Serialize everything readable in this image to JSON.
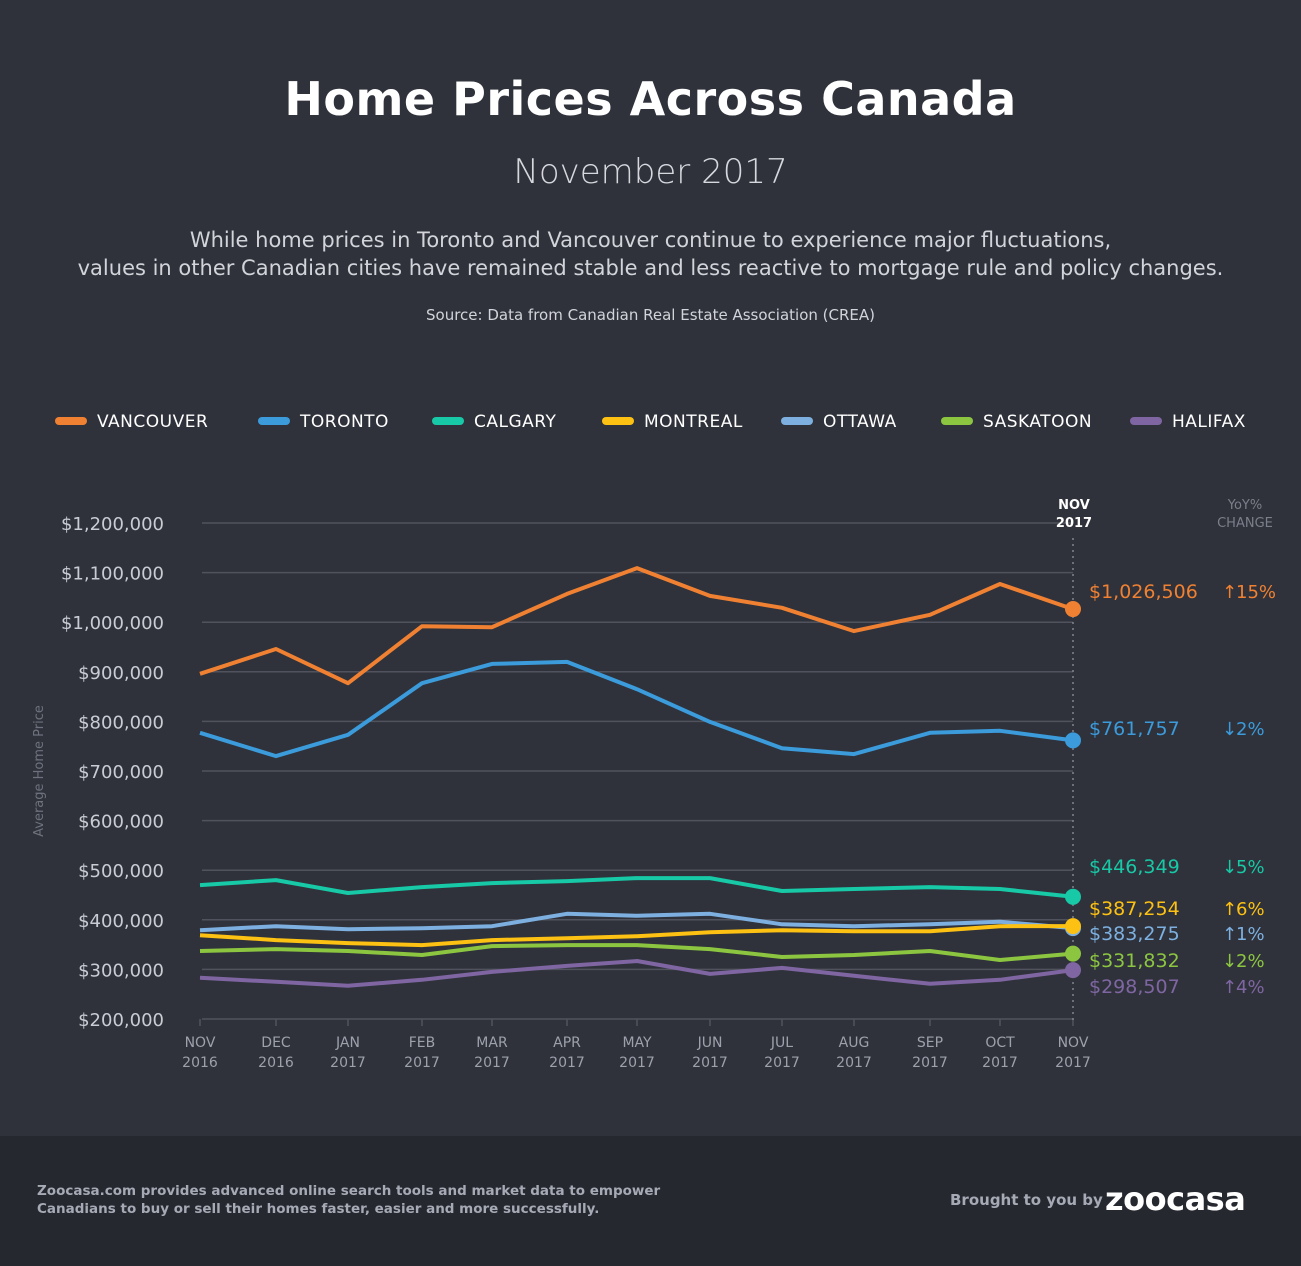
{
  "header": {
    "title": "Home Prices Across Canada",
    "subtitle": "November 2017",
    "description_line1": "While home prices in Toronto and Vancouver continue to experience major fluctuations,",
    "description_line2": "values in other Canadian cities have remained stable and less reactive to mortgage rule and policy changes.",
    "source": "Source: Data from Canadian Real Estate Association (CREA)"
  },
  "footer": {
    "text_line1": "Zoocasa.com provides advanced online search tools and market data to empower",
    "text_line2": "Canadians to buy or sell their homes faster, easier and more successfully.",
    "brought_by": "Brought to you by",
    "logo": "zoocasa"
  },
  "chart_data": {
    "type": "line",
    "ylabel": "Average Home Price",
    "ylim": [
      200000,
      1200000
    ],
    "y_ticks": [
      "$200,000",
      "$300,000",
      "$400,000",
      "$500,000",
      "$600,000",
      "$700,000",
      "$800,000",
      "$900,000",
      "$1,000,000",
      "$1,100,000",
      "$1,200,000"
    ],
    "y_tick_values": [
      200000,
      300000,
      400000,
      500000,
      600000,
      700000,
      800000,
      900000,
      1000000,
      1100000,
      1200000
    ],
    "grid": true,
    "legend_position": "top",
    "x_categories": [
      [
        "NOV",
        "2016"
      ],
      [
        "DEC",
        "2016"
      ],
      [
        "JAN",
        "2017"
      ],
      [
        "FEB",
        "2017"
      ],
      [
        "MAR",
        "2017"
      ],
      [
        "APR",
        "2017"
      ],
      [
        "MAY",
        "2017"
      ],
      [
        "JUN",
        "2017"
      ],
      [
        "JUL",
        "2017"
      ],
      [
        "AUG",
        "2017"
      ],
      [
        "SEP",
        "2017"
      ],
      [
        "OCT",
        "2017"
      ],
      [
        "NOV",
        "2017"
      ]
    ],
    "highlight_header": [
      "NOV",
      "2017"
    ],
    "yoy_header": [
      "YoY%",
      "CHANGE"
    ],
    "series": [
      {
        "name": "VANCOUVER",
        "color": "#f08132",
        "values": [
          896000,
          946000,
          877000,
          992000,
          990000,
          1057000,
          1109000,
          1053000,
          1029000,
          982000,
          1015000,
          1077000,
          1026506
        ],
        "final_label": "$1,026,506",
        "yoy": "15%",
        "yoy_direction": "up"
      },
      {
        "name": "TORONTO",
        "color": "#3b9bdb",
        "values": [
          777000,
          730000,
          773000,
          877000,
          916000,
          920000,
          865000,
          799000,
          746000,
          734000,
          777000,
          781000,
          761757
        ],
        "final_label": "$761,757",
        "yoy": "2%",
        "yoy_direction": "down"
      },
      {
        "name": "CALGARY",
        "color": "#17c9a6",
        "values": [
          470000,
          480000,
          454000,
          466000,
          474000,
          478000,
          484000,
          484000,
          458000,
          462000,
          466000,
          462000,
          446349
        ],
        "final_label": "$446,349",
        "yoy": "5%",
        "yoy_direction": "down"
      },
      {
        "name": "MONTREAL",
        "color": "#fcc112",
        "values": [
          369000,
          359000,
          353000,
          349000,
          359000,
          363000,
          367000,
          375000,
          379000,
          377000,
          377000,
          387000,
          387254
        ],
        "final_label": "$387,254",
        "yoy": "6%",
        "yoy_direction": "up"
      },
      {
        "name": "OTTAWA",
        "color": "#7db0e0",
        "values": [
          379000,
          387000,
          381000,
          383000,
          387000,
          412000,
          408000,
          412000,
          391000,
          387000,
          391000,
          396000,
          383275
        ],
        "final_label": "$383,275",
        "yoy": "1%",
        "yoy_direction": "up"
      },
      {
        "name": "SASKATOON",
        "color": "#8cc640",
        "values": [
          337000,
          341000,
          337000,
          329000,
          347000,
          349000,
          349000,
          341000,
          325000,
          329000,
          337000,
          319000,
          331832
        ],
        "final_label": "$331,832",
        "yoy": "2%",
        "yoy_direction": "down"
      },
      {
        "name": "HALIFAX",
        "color": "#7f66a2",
        "values": [
          283000,
          275000,
          267000,
          279000,
          295000,
          307000,
          317000,
          291000,
          303000,
          287000,
          271000,
          279000,
          298507
        ],
        "final_label": "$298,507",
        "yoy": "4%",
        "yoy_direction": "up"
      }
    ]
  }
}
